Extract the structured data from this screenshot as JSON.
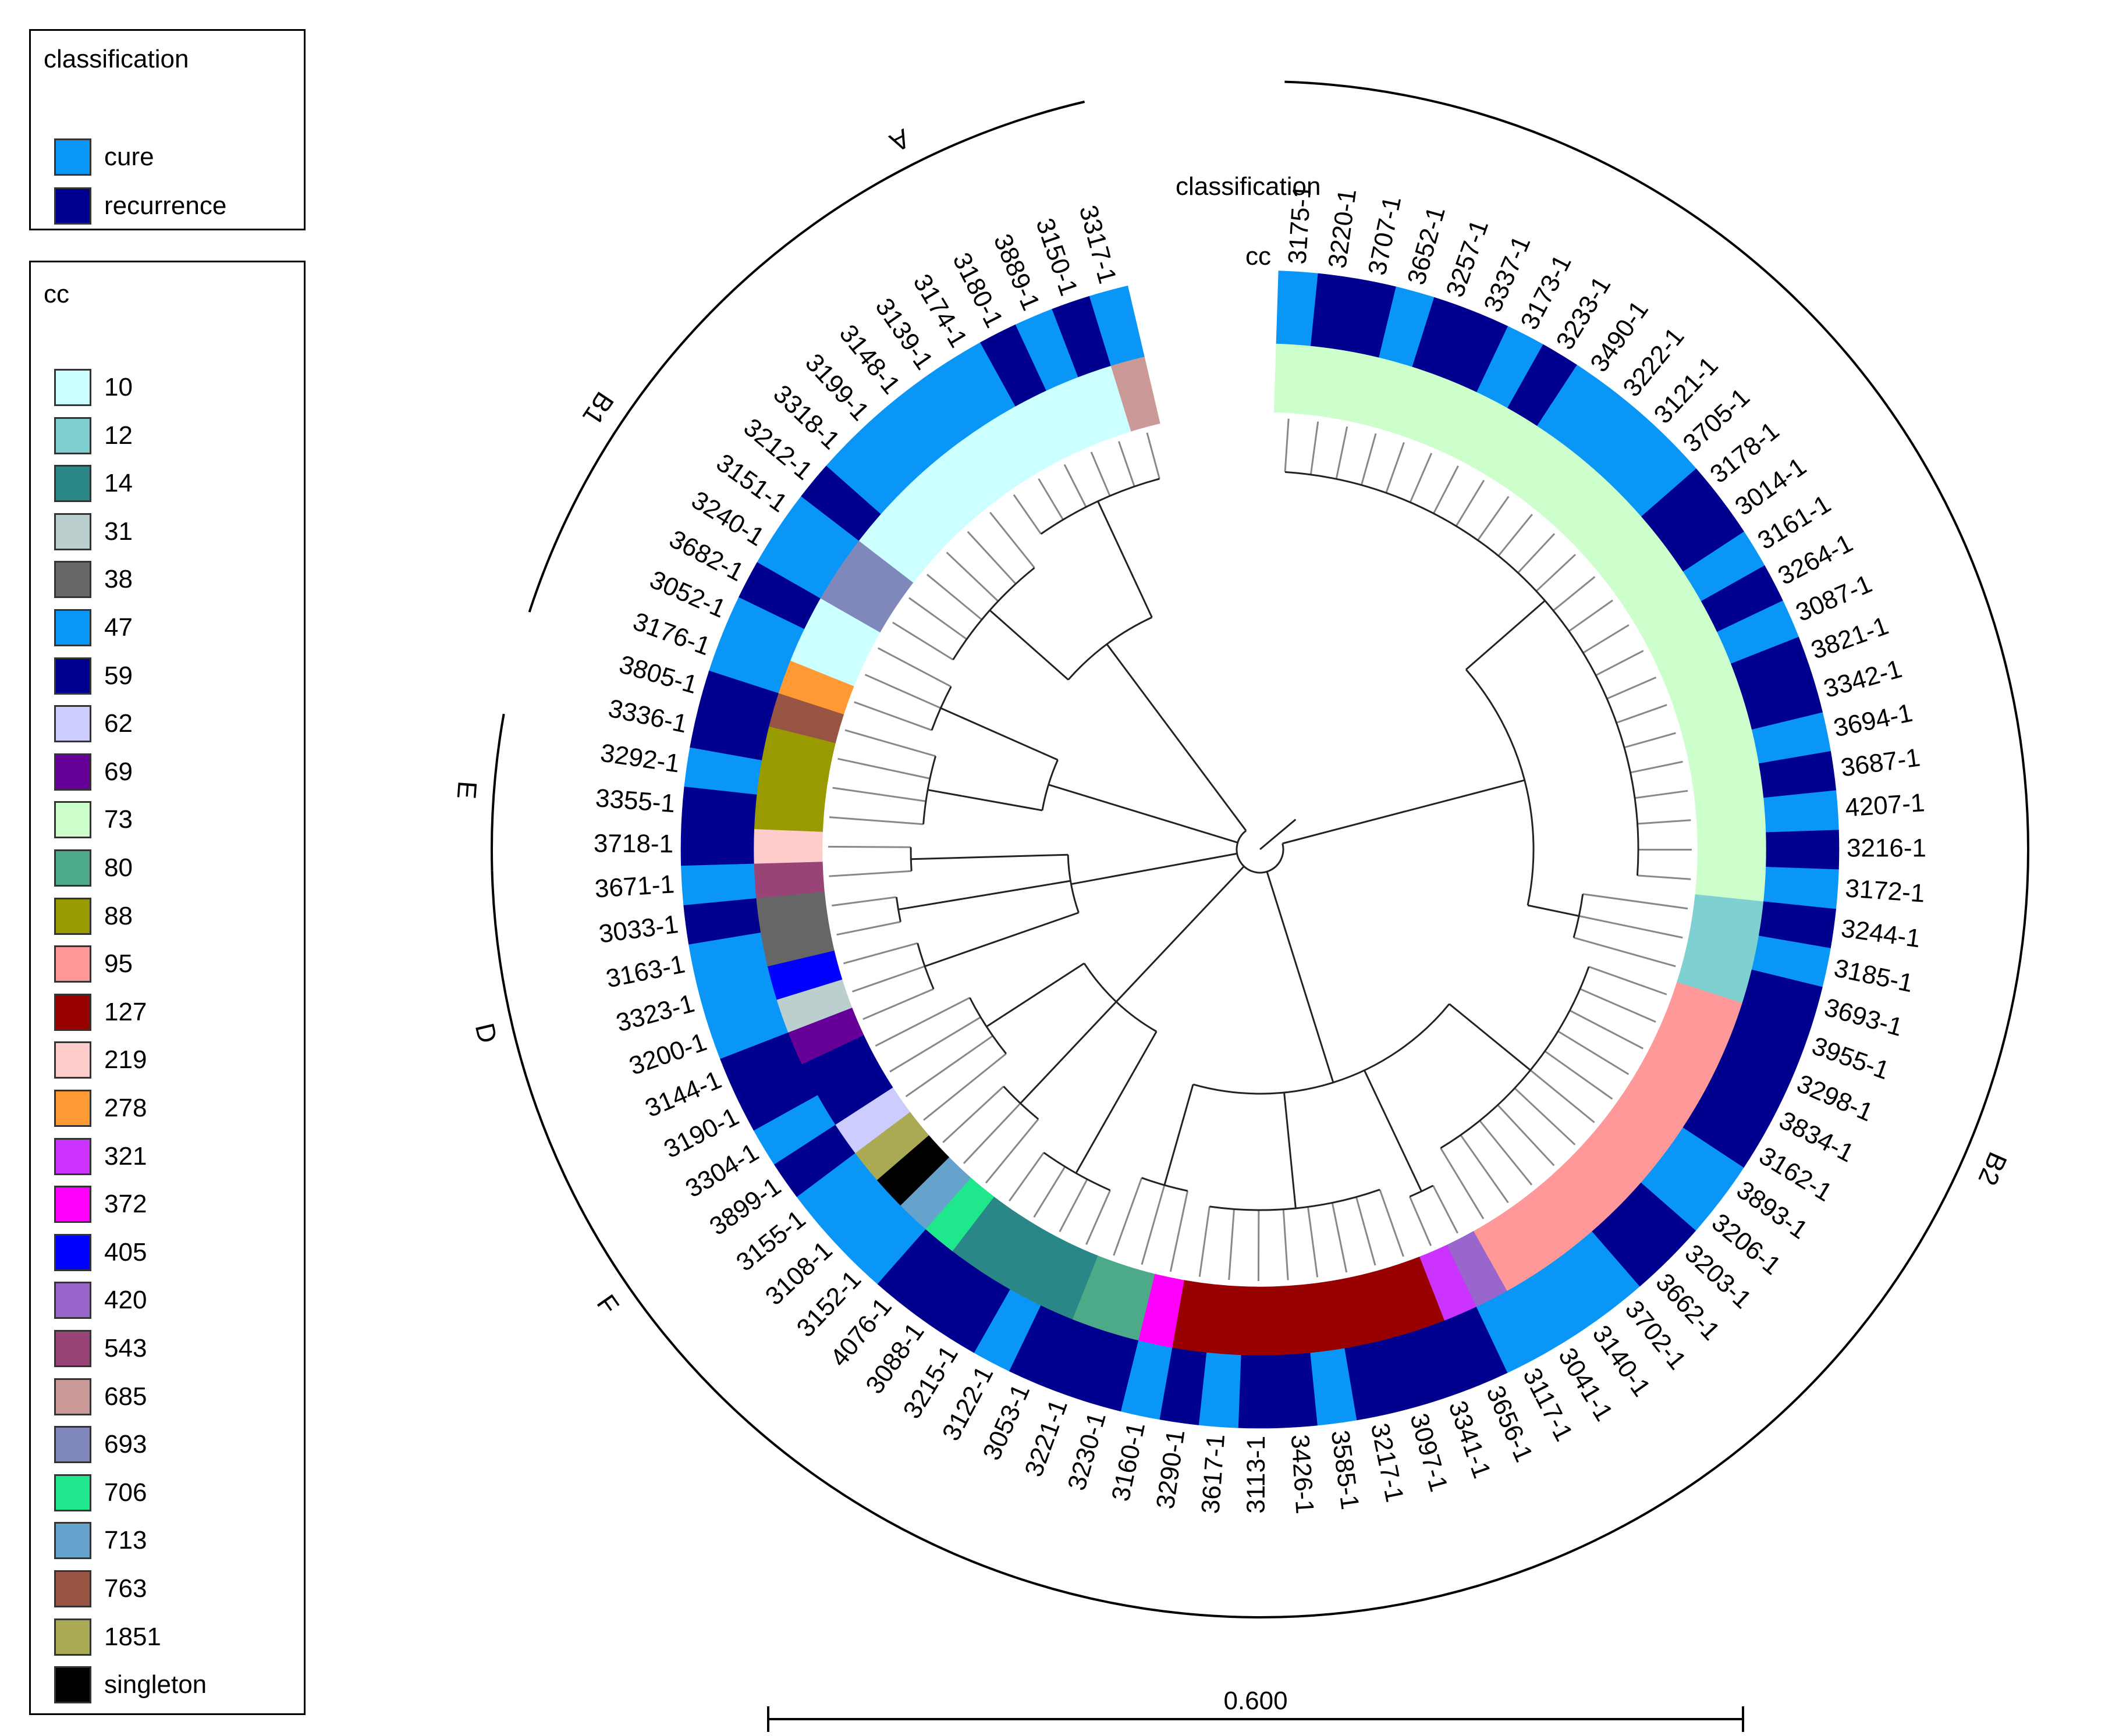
{
  "legend": {
    "classification": {
      "title": "classification",
      "items": [
        {
          "label": "cure",
          "color": "#0A96F7"
        },
        {
          "label": "recurrence",
          "color": "#00008F"
        }
      ]
    },
    "cc": {
      "title": "cc",
      "items": [
        {
          "label": "10",
          "color": "#CCFFFF"
        },
        {
          "label": "12",
          "color": "#7FD1D1"
        },
        {
          "label": "14",
          "color": "#2A8787"
        },
        {
          "label": "31",
          "color": "#BCCFCF"
        },
        {
          "label": "38",
          "color": "#666666"
        },
        {
          "label": "47",
          "color": "#0A96F7"
        },
        {
          "label": "59",
          "color": "#00008F"
        },
        {
          "label": "62",
          "color": "#CCCCFF"
        },
        {
          "label": "69",
          "color": "#660099"
        },
        {
          "label": "73",
          "color": "#CCFFCC"
        },
        {
          "label": "80",
          "color": "#4DAA88"
        },
        {
          "label": "88",
          "color": "#999900"
        },
        {
          "label": "95",
          "color": "#FF9999"
        },
        {
          "label": "127",
          "color": "#990000"
        },
        {
          "label": "219",
          "color": "#FFCCCC"
        },
        {
          "label": "278",
          "color": "#FF9933"
        },
        {
          "label": "321",
          "color": "#CC33FF"
        },
        {
          "label": "372",
          "color": "#FF00FF"
        },
        {
          "label": "405",
          "color": "#0000FF"
        },
        {
          "label": "420",
          "color": "#9966CC"
        },
        {
          "label": "543",
          "color": "#994477"
        },
        {
          "label": "685",
          "color": "#CC9999"
        },
        {
          "label": "693",
          "color": "#8088BB"
        },
        {
          "label": "706",
          "color": "#1FE88C"
        },
        {
          "label": "713",
          "color": "#66A3CC"
        },
        {
          "label": "763",
          "color": "#995544"
        },
        {
          "label": "1851",
          "color": "#AAAA55"
        },
        {
          "label": "singleton",
          "color": "#000000"
        }
      ]
    }
  },
  "ring_labels": {
    "classification": "classification",
    "cc": "cc"
  },
  "scale_bar": {
    "label": "0.600",
    "value": 0.6
  },
  "leaves": [
    {
      "id": "3175-1",
      "cls": "cure",
      "cc": "73"
    },
    {
      "id": "3220-1",
      "cls": "recurrence",
      "cc": "73"
    },
    {
      "id": "3707-1",
      "cls": "recurrence",
      "cc": "73"
    },
    {
      "id": "3652-1",
      "cls": "cure",
      "cc": "73"
    },
    {
      "id": "3257-1",
      "cls": "recurrence",
      "cc": "73"
    },
    {
      "id": "3337-1",
      "cls": "recurrence",
      "cc": "73"
    },
    {
      "id": "3173-1",
      "cls": "cure",
      "cc": "73"
    },
    {
      "id": "3233-1",
      "cls": "recurrence",
      "cc": "73"
    },
    {
      "id": "3490-1",
      "cls": "cure",
      "cc": "73"
    },
    {
      "id": "3222-1",
      "cls": "cure",
      "cc": "73"
    },
    {
      "id": "3121-1",
      "cls": "cure",
      "cc": "73"
    },
    {
      "id": "3705-1",
      "cls": "cure",
      "cc": "73"
    },
    {
      "id": "3178-1",
      "cls": "recurrence",
      "cc": "73"
    },
    {
      "id": "3014-1",
      "cls": "recurrence",
      "cc": "73"
    },
    {
      "id": "3161-1",
      "cls": "cure",
      "cc": "73"
    },
    {
      "id": "3264-1",
      "cls": "recurrence",
      "cc": "73"
    },
    {
      "id": "3087-1",
      "cls": "cure",
      "cc": "73"
    },
    {
      "id": "3821-1",
      "cls": "recurrence",
      "cc": "73"
    },
    {
      "id": "3342-1",
      "cls": "recurrence",
      "cc": "73"
    },
    {
      "id": "3694-1",
      "cls": "cure",
      "cc": "73"
    },
    {
      "id": "3687-1",
      "cls": "recurrence",
      "cc": "73"
    },
    {
      "id": "4207-1",
      "cls": "cure",
      "cc": "73"
    },
    {
      "id": "3216-1",
      "cls": "recurrence",
      "cc": "73"
    },
    {
      "id": "3172-1",
      "cls": "cure",
      "cc": "73"
    },
    {
      "id": "3244-1",
      "cls": "recurrence",
      "cc": "12"
    },
    {
      "id": "3185-1",
      "cls": "cure",
      "cc": "12"
    },
    {
      "id": "3693-1",
      "cls": "recurrence",
      "cc": "12"
    },
    {
      "id": "3955-1",
      "cls": "recurrence",
      "cc": "95"
    },
    {
      "id": "3298-1",
      "cls": "recurrence",
      "cc": "95"
    },
    {
      "id": "3834-1",
      "cls": "recurrence",
      "cc": "95"
    },
    {
      "id": "3162-1",
      "cls": "recurrence",
      "cc": "95"
    },
    {
      "id": "3893-1",
      "cls": "cure",
      "cc": "95"
    },
    {
      "id": "3206-1",
      "cls": "cure",
      "cc": "95"
    },
    {
      "id": "3203-1",
      "cls": "recurrence",
      "cc": "95"
    },
    {
      "id": "3662-1",
      "cls": "recurrence",
      "cc": "95"
    },
    {
      "id": "3702-1",
      "cls": "cure",
      "cc": "95"
    },
    {
      "id": "3140-1",
      "cls": "cure",
      "cc": "95"
    },
    {
      "id": "3041-1",
      "cls": "cure",
      "cc": "95"
    },
    {
      "id": "3117-1",
      "cls": "cure",
      "cc": "420"
    },
    {
      "id": "3656-1",
      "cls": "recurrence",
      "cc": "321"
    },
    {
      "id": "3341-1",
      "cls": "recurrence",
      "cc": "127"
    },
    {
      "id": "3097-1",
      "cls": "recurrence",
      "cc": "127"
    },
    {
      "id": "3217-1",
      "cls": "recurrence",
      "cc": "127"
    },
    {
      "id": "3585-1",
      "cls": "cure",
      "cc": "127"
    },
    {
      "id": "3426-1",
      "cls": "recurrence",
      "cc": "127"
    },
    {
      "id": "3113-1",
      "cls": "recurrence",
      "cc": "127"
    },
    {
      "id": "3617-1",
      "cls": "cure",
      "cc": "127"
    },
    {
      "id": "3290-1",
      "cls": "recurrence",
      "cc": "127"
    },
    {
      "id": "3160-1",
      "cls": "cure",
      "cc": "372"
    },
    {
      "id": "3230-1",
      "cls": "recurrence",
      "cc": "80"
    },
    {
      "id": "3221-1",
      "cls": "recurrence",
      "cc": "80"
    },
    {
      "id": "3053-1",
      "cls": "recurrence",
      "cc": "14"
    },
    {
      "id": "3122-1",
      "cls": "cure",
      "cc": "14"
    },
    {
      "id": "3215-1",
      "cls": "recurrence",
      "cc": "14"
    },
    {
      "id": "3088-1",
      "cls": "recurrence",
      "cc": "14"
    },
    {
      "id": "4076-1",
      "cls": "recurrence",
      "cc": "706"
    },
    {
      "id": "3152-1",
      "cls": "cure",
      "cc": "713"
    },
    {
      "id": "3108-1",
      "cls": "cure",
      "cc": "singleton"
    },
    {
      "id": "3155-1",
      "cls": "cure",
      "cc": "1851"
    },
    {
      "id": "3899-1",
      "cls": "recurrence",
      "cc": "62"
    },
    {
      "id": "3304-1",
      "cls": "cure",
      "cc": "59"
    },
    {
      "id": "3190-1",
      "cls": "recurrence",
      "cc": "59"
    },
    {
      "id": "3144-1",
      "cls": "recurrence",
      "cc": "69"
    },
    {
      "id": "3200-1",
      "cls": "cure",
      "cc": "31"
    },
    {
      "id": "3323-1",
      "cls": "cure",
      "cc": "405"
    },
    {
      "id": "3163-1",
      "cls": "cure",
      "cc": "38"
    },
    {
      "id": "3033-1",
      "cls": "recurrence",
      "cc": "38"
    },
    {
      "id": "3671-1",
      "cls": "cure",
      "cc": "543"
    },
    {
      "id": "3718-1",
      "cls": "recurrence",
      "cc": "219"
    },
    {
      "id": "3355-1",
      "cls": "recurrence",
      "cc": "88"
    },
    {
      "id": "3292-1",
      "cls": "cure",
      "cc": "88"
    },
    {
      "id": "3336-1",
      "cls": "recurrence",
      "cc": "88"
    },
    {
      "id": "3805-1",
      "cls": "recurrence",
      "cc": "763"
    },
    {
      "id": "3176-1",
      "cls": "cure",
      "cc": "278"
    },
    {
      "id": "3052-1",
      "cls": "cure",
      "cc": "10"
    },
    {
      "id": "3682-1",
      "cls": "recurrence",
      "cc": "10"
    },
    {
      "id": "3240-1",
      "cls": "cure",
      "cc": "693"
    },
    {
      "id": "3151-1",
      "cls": "cure",
      "cc": "693"
    },
    {
      "id": "3212-1",
      "cls": "recurrence",
      "cc": "10"
    },
    {
      "id": "3318-1",
      "cls": "cure",
      "cc": "10"
    },
    {
      "id": "3199-1",
      "cls": "cure",
      "cc": "10"
    },
    {
      "id": "3148-1",
      "cls": "cure",
      "cc": "10"
    },
    {
      "id": "3139-1",
      "cls": "cure",
      "cc": "10"
    },
    {
      "id": "3174-1",
      "cls": "cure",
      "cc": "10"
    },
    {
      "id": "3180-1",
      "cls": "recurrence",
      "cc": "10"
    },
    {
      "id": "3889-1",
      "cls": "cure",
      "cc": "10"
    },
    {
      "id": "3150-1",
      "cls": "recurrence",
      "cc": "10"
    },
    {
      "id": "3317-1",
      "cls": "cure",
      "cc": "685"
    }
  ],
  "clades": [
    {
      "label": "A",
      "from": "3148-1",
      "to": "3317-1"
    },
    {
      "label": "B1",
      "from": "3176-1",
      "to": "3199-1"
    },
    {
      "label": "E",
      "from": "3718-1",
      "to": "3292-1"
    },
    {
      "label": "D",
      "from": "3144-1",
      "to": "3671-1"
    },
    {
      "label": "F",
      "from": "3108-1",
      "to": "3190-1"
    },
    {
      "label": "B2",
      "from": "3175-1",
      "to": "3152-1"
    }
  ]
}
